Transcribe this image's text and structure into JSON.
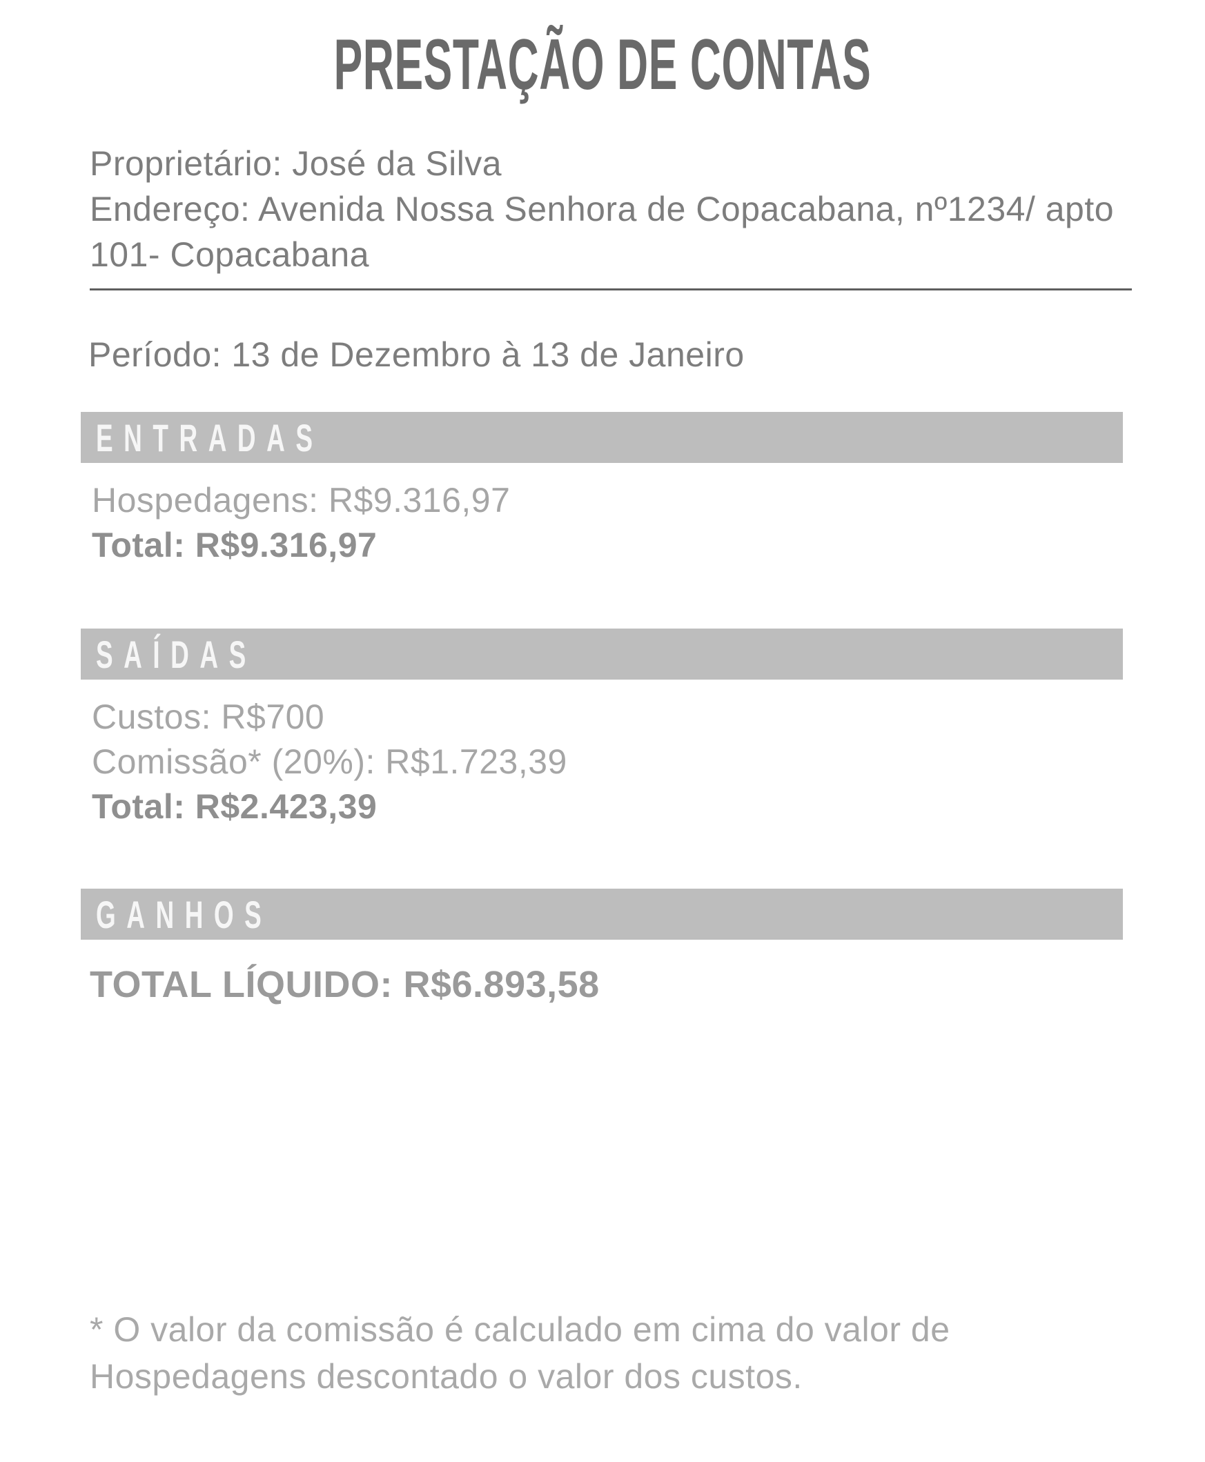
{
  "title": "PRESTAÇÃO DE CONTAS",
  "owner": {
    "proprietario": "Proprietário: José da Silva",
    "endereco": "Endereço: Avenida Nossa Senhora de Copacabana, nº1234/ apto 101- Copacabana"
  },
  "periodo": "Período: 13 de Dezembro à 13 de Janeiro",
  "sections": [
    {
      "heading": "ENTRADAS",
      "lines": [
        "Hospedagens: R$9.316,97"
      ],
      "total": "Total: R$9.316,97"
    },
    {
      "heading": "SAÍDAS",
      "lines": [
        "Custos: R$700",
        "Comissão* (20%): R$1.723,39"
      ],
      "total": "Total: R$2.423,39"
    },
    {
      "heading": "GANHOS",
      "total": "TOTAL LÍQUIDO: R$6.893,58"
    }
  ],
  "footnote": "* O valor da comissão é calculado em cima do valor de Hospedagens descontado o valor dos custos.",
  "colors": {
    "background": "#ffffff",
    "banner_bg": "#bdbdbd",
    "banner_text": "#f6f6f6",
    "title_text": "#6a6a6a",
    "body_text": "#7d7d7d",
    "light_text": "#a6a6a6",
    "bold_text": "#8f8f8f",
    "ganhos_total_text": "#9a9a9a",
    "divider": "#5e5e5e"
  }
}
